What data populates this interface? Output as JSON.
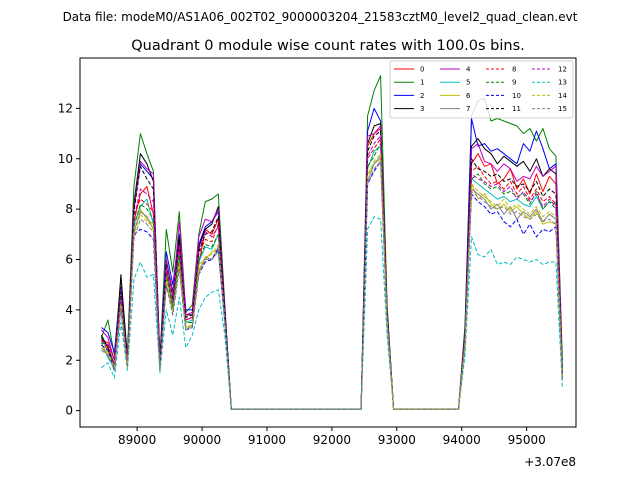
{
  "header": {
    "data_file": "Data file: modeM0/AS1A06_002T02_9000003204_21583cztM0_level2_quad_clean.evt"
  },
  "chart_data": {
    "type": "line",
    "title": "Quadrant 0 module wise count rates with 100.0s bins.",
    "xlabel": "",
    "ylabel": "",
    "x_offset_label": "+3.07e8",
    "xlim": [
      88120,
      95760
    ],
    "ylim": [
      -0.65,
      14.0
    ],
    "x_ticks": [
      89000,
      90000,
      91000,
      92000,
      93000,
      94000,
      95000
    ],
    "x_tick_labels": [
      "89000",
      "90000",
      "91000",
      "92000",
      "93000",
      "94000",
      "95000"
    ],
    "y_ticks": [
      0,
      2,
      4,
      6,
      8,
      10,
      12
    ],
    "y_tick_labels": [
      "0",
      "2",
      "4",
      "6",
      "8",
      "10",
      "12"
    ],
    "grid": false,
    "legend_position": "top-right",
    "x": [
      88450,
      88550,
      88650,
      88750,
      88850,
      88950,
      89050,
      89150,
      89250,
      89350,
      89450,
      89550,
      89650,
      89750,
      89850,
      89950,
      90050,
      90150,
      90250,
      90350,
      90450,
      92450,
      92550,
      92650,
      92750,
      92850,
      92950,
      93950,
      94050,
      94150,
      94250,
      94350,
      94450,
      94550,
      94650,
      94750,
      94850,
      94950,
      95050,
      95150,
      95250,
      95350,
      95450,
      95550
    ],
    "gaps_after_index": [
      20,
      26
    ],
    "series": [
      {
        "name": "0",
        "color": "#ff0000",
        "dash": false,
        "values": [
          2.8,
          2.7,
          2.0,
          4.5,
          2.2,
          7.5,
          8.6,
          8.9,
          7.8,
          1.8,
          5.5,
          4.0,
          6.5,
          3.6,
          3.7,
          5.8,
          7.2,
          7.0,
          7.6,
          4.0,
          0.05,
          0.05,
          10.5,
          11.0,
          11.2,
          4.0,
          0.05,
          0.05,
          3.0,
          9.8,
          10.2,
          9.7,
          9.8,
          9.0,
          9.2,
          9.6,
          8.8,
          9.2,
          8.6,
          9.4,
          8.7,
          9.3,
          9.0,
          1.5
        ]
      },
      {
        "name": "1",
        "color": "#008000",
        "dash": false,
        "values": [
          2.9,
          3.6,
          2.2,
          5.3,
          2.2,
          8.9,
          11.0,
          10.2,
          9.5,
          2.0,
          7.2,
          5.5,
          7.9,
          3.9,
          4.2,
          7.0,
          8.3,
          8.4,
          8.6,
          4.2,
          0.05,
          0.05,
          11.7,
          12.7,
          13.3,
          4.2,
          0.05,
          0.05,
          3.4,
          11.7,
          12.3,
          12.4,
          11.5,
          11.6,
          11.5,
          11.4,
          11.3,
          11.0,
          11.2,
          10.7,
          11.2,
          10.4,
          10.1,
          2.0
        ]
      },
      {
        "name": "2",
        "color": "#0000ff",
        "dash": false,
        "values": [
          3.3,
          3.1,
          2.3,
          4.9,
          2.1,
          8.0,
          9.8,
          9.5,
          9.2,
          2.1,
          6.3,
          5.0,
          7.0,
          4.0,
          4.0,
          6.6,
          7.3,
          7.5,
          7.9,
          4.1,
          0.05,
          0.05,
          11.1,
          12.0,
          11.5,
          4.0,
          0.05,
          0.05,
          3.2,
          11.6,
          10.5,
          10.6,
          10.3,
          10.4,
          10.2,
          10.0,
          9.8,
          10.6,
          10.3,
          11.1,
          10.4,
          9.6,
          9.8,
          1.6
        ]
      },
      {
        "name": "3",
        "color": "#000000",
        "dash": false,
        "values": [
          3.0,
          2.5,
          1.6,
          5.4,
          2.0,
          8.2,
          10.2,
          9.8,
          9.1,
          2.0,
          6.0,
          4.7,
          6.9,
          3.8,
          3.8,
          6.5,
          7.2,
          7.4,
          8.1,
          4.0,
          0.05,
          0.05,
          10.6,
          11.3,
          11.4,
          4.0,
          0.05,
          0.05,
          3.1,
          10.5,
          10.8,
          10.4,
          10.2,
          9.8,
          10.1,
          9.9,
          9.7,
          9.9,
          9.5,
          10.0,
          9.3,
          9.6,
          9.4,
          1.6
        ]
      },
      {
        "name": "4",
        "color": "#bf00bf",
        "dash": false,
        "values": [
          3.2,
          2.9,
          2.0,
          4.8,
          1.9,
          8.0,
          9.9,
          9.6,
          9.4,
          1.9,
          6.0,
          4.6,
          7.5,
          3.8,
          3.9,
          6.9,
          7.6,
          7.5,
          8.0,
          3.9,
          0.05,
          0.05,
          10.9,
          11.0,
          11.3,
          3.8,
          0.05,
          0.05,
          3.0,
          10.4,
          10.6,
          9.9,
          9.8,
          9.5,
          9.8,
          9.6,
          9.1,
          9.3,
          9.2,
          9.7,
          9.3,
          9.5,
          9.7,
          1.5
        ]
      },
      {
        "name": "5",
        "color": "#00bfbf",
        "dash": false,
        "values": [
          2.7,
          2.1,
          1.7,
          4.6,
          1.8,
          7.4,
          8.1,
          8.4,
          7.4,
          1.7,
          5.4,
          4.2,
          6.3,
          3.5,
          3.6,
          5.9,
          6.5,
          6.4,
          7.0,
          3.7,
          0.05,
          0.05,
          9.6,
          10.3,
          10.5,
          3.6,
          0.05,
          0.05,
          2.8,
          9.2,
          9.0,
          8.8,
          8.6,
          8.4,
          8.5,
          8.3,
          8.4,
          8.2,
          8.1,
          8.5,
          8.0,
          8.3,
          8.2,
          1.4
        ]
      },
      {
        "name": "6",
        "color": "#bfbf00",
        "dash": false,
        "values": [
          2.6,
          2.3,
          1.8,
          4.2,
          1.8,
          7.0,
          8.0,
          7.6,
          7.4,
          1.7,
          5.3,
          4.1,
          5.9,
          3.3,
          3.4,
          5.8,
          6.0,
          6.3,
          6.4,
          3.6,
          0.05,
          0.05,
          9.4,
          9.8,
          10.0,
          3.5,
          0.05,
          0.05,
          2.7,
          9.0,
          8.4,
          8.6,
          8.2,
          8.0,
          8.2,
          7.9,
          8.1,
          7.8,
          7.6,
          7.9,
          7.4,
          7.5,
          7.4,
          1.3
        ]
      },
      {
        "name": "7",
        "color": "#808080",
        "dash": false,
        "values": [
          2.5,
          2.2,
          1.8,
          4.3,
          1.8,
          7.1,
          7.9,
          7.7,
          7.2,
          1.6,
          5.0,
          4.0,
          5.8,
          3.2,
          3.4,
          5.5,
          6.1,
          6.0,
          6.5,
          3.5,
          0.05,
          0.05,
          9.1,
          9.8,
          10.1,
          3.5,
          0.05,
          0.05,
          2.6,
          8.8,
          8.6,
          8.4,
          8.0,
          8.2,
          7.8,
          8.1,
          7.6,
          7.9,
          7.7,
          8.0,
          7.5,
          7.8,
          7.6,
          1.3
        ]
      },
      {
        "name": "8",
        "color": "#ff0000",
        "dash": true,
        "values": [
          2.8,
          2.4,
          1.9,
          4.6,
          2.0,
          7.8,
          8.4,
          8.2,
          7.9,
          1.8,
          5.6,
          4.3,
          6.4,
          3.6,
          3.7,
          6.2,
          6.8,
          6.7,
          7.4,
          3.8,
          0.05,
          0.05,
          10.0,
          10.4,
          10.8,
          3.8,
          0.05,
          0.05,
          2.9,
          9.5,
          9.7,
          9.3,
          9.0,
          9.1,
          8.8,
          9.1,
          8.6,
          8.9,
          8.4,
          8.8,
          8.3,
          8.5,
          8.2,
          1.4
        ]
      },
      {
        "name": "9",
        "color": "#008000",
        "dash": true,
        "values": [
          2.7,
          2.6,
          1.7,
          4.3,
          1.9,
          7.3,
          8.2,
          8.0,
          7.6,
          1.7,
          5.4,
          4.1,
          6.1,
          3.5,
          3.5,
          6.0,
          6.6,
          6.5,
          7.0,
          3.7,
          0.05,
          0.05,
          9.7,
          10.1,
          10.6,
          3.7,
          0.05,
          0.05,
          2.8,
          9.2,
          9.4,
          9.0,
          8.8,
          8.9,
          8.6,
          8.7,
          8.5,
          8.6,
          8.2,
          8.7,
          8.0,
          8.3,
          8.0,
          1.4
        ]
      },
      {
        "name": "10",
        "color": "#0000ff",
        "dash": true,
        "values": [
          2.6,
          2.4,
          1.6,
          4.1,
          1.8,
          7.0,
          7.2,
          7.1,
          6.8,
          1.6,
          5.0,
          3.8,
          5.7,
          3.2,
          3.3,
          5.4,
          5.9,
          6.0,
          6.4,
          3.5,
          0.05,
          0.05,
          9.0,
          9.5,
          9.9,
          3.5,
          0.05,
          0.05,
          2.6,
          8.6,
          8.3,
          8.1,
          7.8,
          7.9,
          7.5,
          7.3,
          7.6,
          7.0,
          7.4,
          6.9,
          7.2,
          7.1,
          7.3,
          1.2
        ]
      },
      {
        "name": "11",
        "color": "#000000",
        "dash": true,
        "values": [
          2.9,
          2.5,
          1.8,
          4.7,
          2.0,
          7.9,
          9.7,
          9.2,
          8.8,
          1.9,
          5.8,
          4.4,
          6.7,
          3.7,
          3.8,
          6.3,
          7.0,
          7.1,
          7.7,
          3.9,
          0.05,
          0.05,
          10.3,
          10.9,
          11.1,
          3.9,
          0.05,
          0.05,
          3.0,
          10.0,
          9.6,
          9.5,
          9.3,
          9.4,
          9.1,
          9.2,
          8.9,
          9.0,
          8.7,
          9.1,
          8.5,
          8.8,
          8.6,
          1.5
        ]
      },
      {
        "name": "12",
        "color": "#bf00bf",
        "dash": true,
        "values": [
          2.8,
          2.6,
          1.8,
          4.5,
          1.9,
          7.6,
          8.8,
          8.6,
          8.3,
          1.8,
          5.7,
          4.3,
          6.6,
          3.6,
          3.7,
          6.4,
          7.1,
          6.9,
          7.3,
          3.8,
          0.05,
          0.05,
          10.1,
          10.6,
          10.9,
          3.8,
          0.05,
          0.05,
          2.9,
          9.4,
          9.2,
          9.1,
          8.9,
          9.0,
          8.7,
          8.9,
          8.4,
          8.7,
          8.3,
          8.6,
          8.1,
          8.4,
          8.1,
          1.4
        ]
      },
      {
        "name": "13",
        "color": "#00bfbf",
        "dash": true,
        "values": [
          1.7,
          1.9,
          1.3,
          3.5,
          1.6,
          5.2,
          5.9,
          5.3,
          5.4,
          1.5,
          4.0,
          3.0,
          4.5,
          2.5,
          3.0,
          4.0,
          4.5,
          4.7,
          4.8,
          3.0,
          0.05,
          0.05,
          7.2,
          7.7,
          7.6,
          3.0,
          0.05,
          0.05,
          2.2,
          6.9,
          6.2,
          6.1,
          6.4,
          5.8,
          5.9,
          5.8,
          6.1,
          6.0,
          5.9,
          6.0,
          5.8,
          5.9,
          5.9,
          0.9
        ]
      },
      {
        "name": "14",
        "color": "#bfbf00",
        "dash": true,
        "values": [
          2.5,
          2.3,
          1.7,
          4.2,
          1.7,
          7.0,
          7.8,
          7.5,
          7.3,
          1.6,
          5.1,
          3.9,
          5.8,
          3.3,
          3.4,
          5.6,
          6.1,
          6.2,
          6.6,
          3.6,
          0.05,
          0.05,
          9.3,
          9.9,
          10.2,
          3.6,
          0.05,
          0.05,
          2.7,
          9.0,
          8.7,
          8.5,
          8.3,
          8.1,
          8.4,
          8.0,
          8.2,
          8.0,
          7.8,
          8.1,
          7.7,
          7.9,
          7.7,
          1.3
        ]
      },
      {
        "name": "15",
        "color": "#808080",
        "dash": true,
        "values": [
          2.4,
          2.2,
          1.6,
          4.0,
          1.7,
          6.8,
          7.6,
          7.4,
          7.1,
          1.6,
          5.0,
          3.8,
          5.6,
          3.2,
          3.3,
          5.4,
          6.0,
          6.0,
          6.3,
          3.5,
          0.05,
          0.05,
          9.0,
          9.6,
          9.9,
          3.5,
          0.05,
          0.05,
          2.6,
          8.7,
          8.5,
          8.3,
          8.1,
          8.0,
          8.1,
          7.8,
          7.9,
          7.7,
          7.6,
          7.8,
          7.5,
          7.6,
          7.4,
          1.2
        ]
      }
    ]
  }
}
